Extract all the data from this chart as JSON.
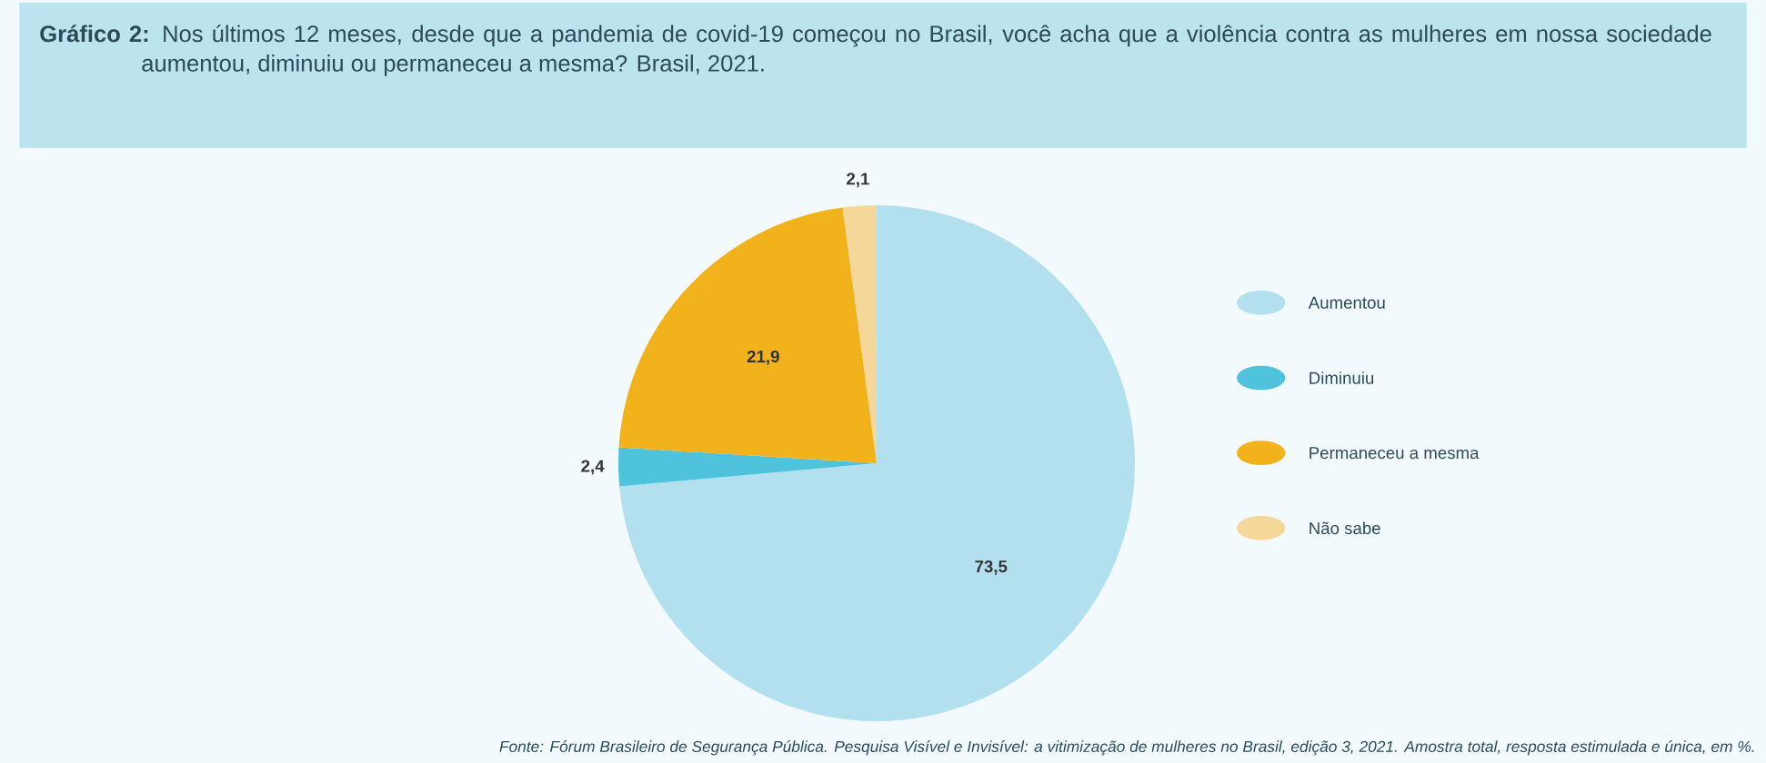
{
  "chart_data": {
    "type": "pie",
    "title": "**Gráfico 2:** Nos últimos 12 meses, desde que a pandemia de covid-19 começou no Brasil, você acha que a violência contra as mulheres em nossa sociedade aumentou, diminuiu ou permaneceu a mesma? Brasil, 2021.",
    "categories": [
      "Aumentou",
      "Diminuiu",
      "Permaneceu a mesma",
      "Não sabe"
    ],
    "values": [
      73.5,
      2.4,
      21.9,
      2.1
    ],
    "value_labels": [
      "73,5",
      "2,4",
      "21,9",
      "2,1"
    ],
    "colors": [
      "#b3e0ee",
      "#4fc3dc",
      "#f2b21b",
      "#f6d79a"
    ],
    "legend": "right",
    "annotations": [
      "Fonte: Fórum Brasileiro de Segurança Pública. Pesquisa Visível e Invisível: a vitimização de mulheres no Brasil, edição 3, 2021. Amostra total, resposta estimulada e única, em %."
    ]
  }
}
